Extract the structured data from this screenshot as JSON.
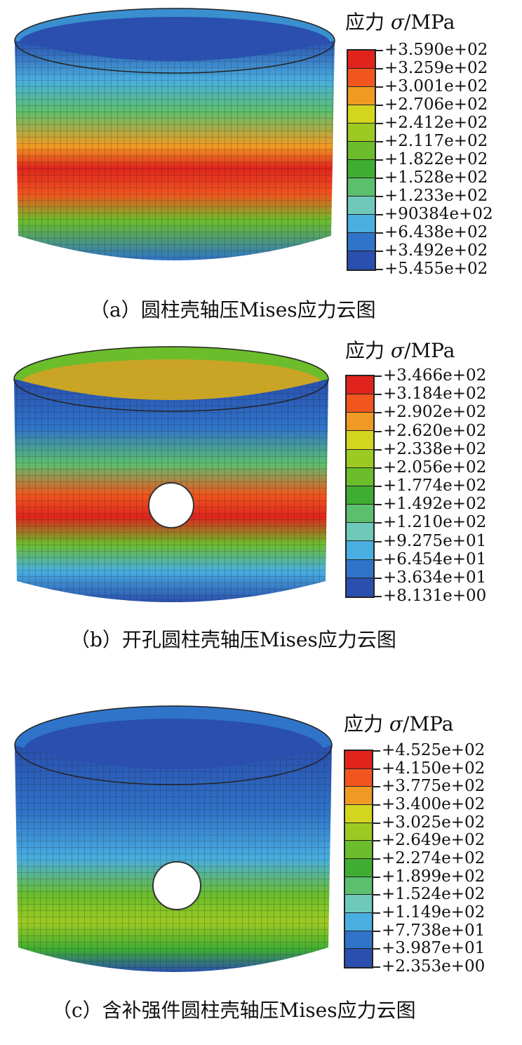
{
  "colorscale": [
    "#e0241d",
    "#f0561e",
    "#f19a23",
    "#d4d51f",
    "#9dca22",
    "#6bbd2b",
    "#3fad32",
    "#5cbf6e",
    "#6fc9b8",
    "#49aee0",
    "#2f74c9",
    "#2a4fae"
  ],
  "panels": [
    {
      "legend_title": "应力",
      "legend_symbol": "σ",
      "legend_unit": "/MPa",
      "ticks": [
        "+3.590e+02",
        "+3.259e+02",
        "+3.001e+02",
        "+2.706e+02",
        "+2.412e+02",
        "+2.117e+02",
        "+1.822e+02",
        "+1.528e+02",
        "+1.233e+02",
        "+90384e+02",
        "+6.438e+02",
        "+3.492e+02",
        "+5.455e+02"
      ],
      "caption": "（a）圆柱壳轴压Mises应力云图"
    },
    {
      "legend_title": "应力",
      "legend_symbol": "σ",
      "legend_unit": "/MPa",
      "ticks": [
        "+3.466e+02",
        "+3.184e+02",
        "+2.902e+02",
        "+2.620e+02",
        "+2.338e+02",
        "+2.056e+02",
        "+1.774e+02",
        "+1.492e+02",
        "+1.210e+02",
        "+9.275e+01",
        "+6.454e+01",
        "+3.634e+01",
        "+8.131e+00"
      ],
      "caption": "（b）开孔圆柱壳轴压Mises应力云图"
    },
    {
      "legend_title": "应力",
      "legend_symbol": "σ",
      "legend_unit": "/MPa",
      "ticks": [
        "+4.525e+02",
        "+4.150e+02",
        "+3.775e+02",
        "+3.400e+02",
        "+3.025e+02",
        "+2.649e+02",
        "+2.274e+02",
        "+1.899e+02",
        "+1.524e+02",
        "+1.149e+02",
        "+7.738e+01",
        "+3.987e+01",
        "+2.353e+00"
      ],
      "caption": "（c）含补强件圆柱壳轴压Mises应力云图"
    }
  ]
}
